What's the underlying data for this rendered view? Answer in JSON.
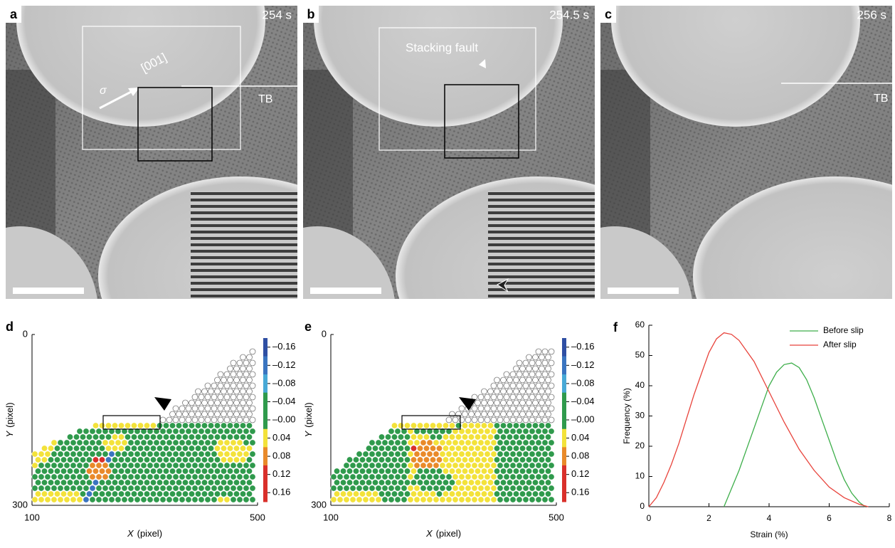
{
  "panels": [
    {
      "label": "a",
      "time": "254 s"
    },
    {
      "label": "b",
      "time": "254.5 s"
    },
    {
      "label": "c",
      "time": "256 s"
    }
  ],
  "annotations": {
    "sigma": "σ",
    "direction": "[001]",
    "tb_a": "TB",
    "stacking_fault": "Stacking fault",
    "tb_c": "TB"
  },
  "maps": [
    {
      "label": "d",
      "x_var": "X",
      "x_unit": "(pixel)",
      "y_var": "Y",
      "y_unit": "(pixel)",
      "xticks": [
        100,
        500
      ],
      "yticks": [
        0,
        300
      ]
    },
    {
      "label": "e",
      "x_var": "X",
      "x_unit": "(pixel)",
      "y_var": "Y",
      "y_unit": "(pixel)",
      "xticks": [
        100,
        500
      ],
      "yticks": [
        0,
        300
      ]
    }
  ],
  "colorbar": {
    "colors": [
      "#2f4fa3",
      "#3a74c0",
      "#48a9d6",
      "#2f9a4c",
      "#2f9a4c",
      "#f3e23a",
      "#e98a2a",
      "#d9302b",
      "#d9302b"
    ],
    "ticks": [
      {
        "value": -0.16,
        "label": "–0.16"
      },
      {
        "value": -0.12,
        "label": "–0.12"
      },
      {
        "value": -0.08,
        "label": "–0.08"
      },
      {
        "value": -0.04,
        "label": "–0.04"
      },
      {
        "value": 0,
        "label": "–0.00"
      },
      0.04,
      0.08,
      0.12,
      0.16
    ]
  },
  "chart_data": {
    "type": "line",
    "panel_label": "f",
    "xlabel": "Strain (%)",
    "ylabel": "Frequency (%)",
    "xlim": [
      0,
      8
    ],
    "ylim": [
      0,
      60
    ],
    "xticks": [
      0,
      2,
      4,
      6,
      8
    ],
    "yticks": [
      0,
      10,
      20,
      30,
      40,
      50,
      60
    ],
    "legend": "upper right",
    "series": [
      {
        "name": "Before slip",
        "color": "#3dae4a",
        "x": [
          2.5,
          2.75,
          3,
          3.25,
          3.5,
          3.75,
          4,
          4.25,
          4.5,
          4.75,
          5,
          5.25,
          5.5,
          5.75,
          6,
          6.25,
          6.5,
          6.75,
          7,
          7.2
        ],
        "values": [
          0,
          6,
          12,
          19,
          26,
          33,
          40,
          44.5,
          47,
          47.5,
          46,
          42,
          36,
          29,
          22,
          15,
          9,
          4.5,
          1.5,
          0
        ]
      },
      {
        "name": "After slip",
        "color": "#e8423a",
        "x": [
          0,
          0.25,
          0.5,
          0.75,
          1,
          1.25,
          1.5,
          1.75,
          2,
          2.25,
          2.5,
          2.75,
          3,
          3.5,
          4,
          4.5,
          5,
          5.5,
          6,
          6.5,
          7,
          7.3
        ],
        "values": [
          0,
          3,
          8,
          14,
          21,
          29,
          37,
          44,
          51,
          55.5,
          57.5,
          57,
          55,
          48,
          38,
          28,
          19,
          12,
          6.5,
          3,
          0.8,
          0
        ]
      }
    ]
  }
}
